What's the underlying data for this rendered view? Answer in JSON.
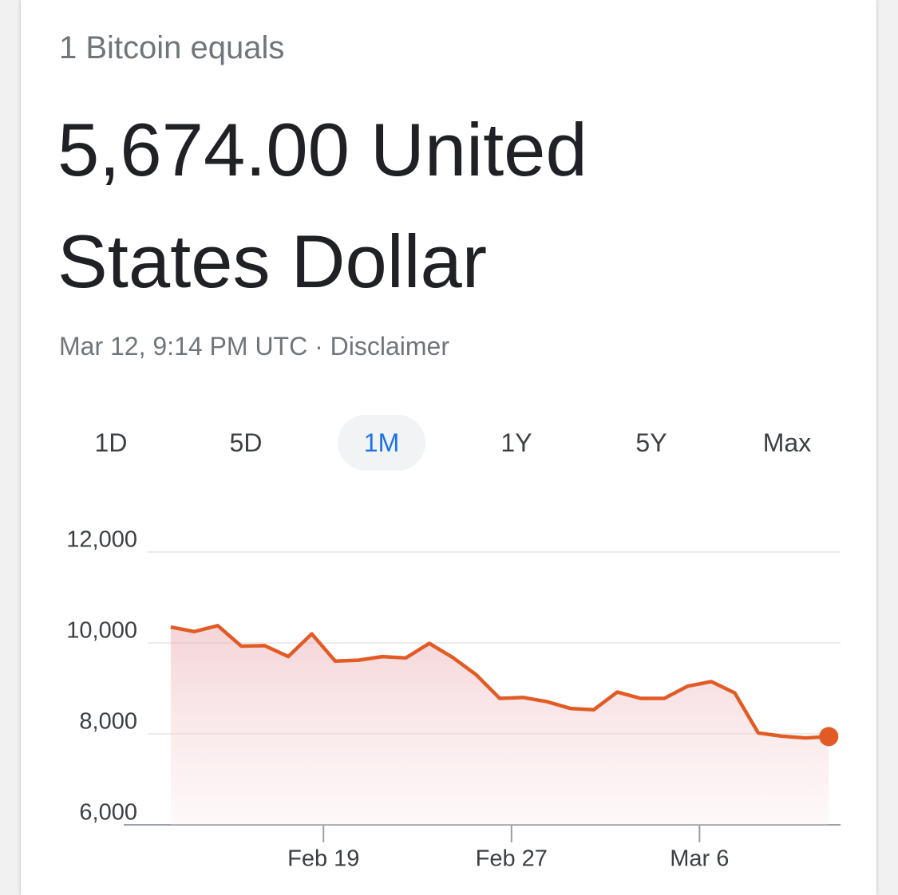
{
  "header": {
    "subtitle": "1 Bitcoin equals",
    "amount": "5,674.00 United States Dollar",
    "timestamp": "Mar 12, 9:14 PM UTC",
    "separator": "·",
    "disclaimer": "Disclaimer"
  },
  "ranges": [
    "1D",
    "5D",
    "1M",
    "1Y",
    "5Y",
    "Max"
  ],
  "chart_data": {
    "type": "line",
    "x": [
      0,
      1,
      2,
      3,
      4,
      5,
      6,
      7,
      8,
      9,
      10,
      11,
      12,
      13,
      14,
      15,
      16,
      17,
      18,
      19,
      20,
      21,
      22,
      23,
      24,
      25,
      26,
      27,
      28
    ],
    "values": [
      10350,
      10250,
      10380,
      9930,
      9940,
      9700,
      10200,
      9600,
      9620,
      9700,
      9670,
      9990,
      9680,
      9300,
      8780,
      8800,
      8710,
      8560,
      8530,
      8920,
      8780,
      8780,
      9050,
      9150,
      8900,
      8020,
      7950,
      7910,
      7940
    ],
    "color": "#e25b24",
    "xlim": [
      -2,
      28.5
    ],
    "xticks": [
      {
        "value": 6.5,
        "label": "Feb 19"
      },
      {
        "value": 14.5,
        "label": "Feb 27"
      },
      {
        "value": 22.5,
        "label": "Mar 6"
      }
    ],
    "ylim": [
      6000,
      12000
    ],
    "yticks": [
      {
        "value": 6000,
        "label": "6,000"
      },
      {
        "value": 8000,
        "label": "8,000"
      },
      {
        "value": 10000,
        "label": "10,000"
      },
      {
        "value": 12000,
        "label": "12,000"
      }
    ],
    "grid": true
  }
}
